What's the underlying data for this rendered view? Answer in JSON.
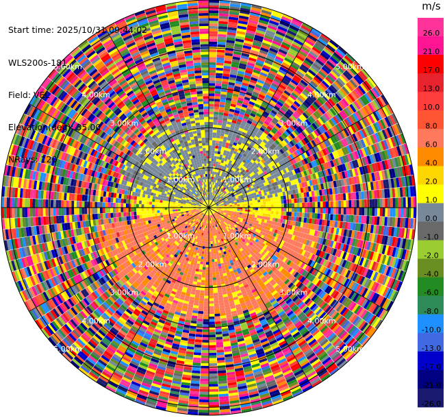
{
  "header": {
    "start_time": "Start time: 2025/10/31 09:44:02",
    "instrument": "WLS200s-181",
    "field": "Field: VEL",
    "elevation": "Elevation(deg): 35.00",
    "nrays": "NRays: 120"
  },
  "chart_data": {
    "type": "heatmap",
    "projection": "polar-ppi",
    "field": "VEL",
    "units": "m/s",
    "nrays": 120,
    "max_range_km": 5.2,
    "range_rings": [
      {
        "range_km": 1.0,
        "label": "1.00km"
      },
      {
        "range_km": 2.0,
        "label": "2.00km"
      },
      {
        "range_km": 3.0,
        "label": "3.00km"
      },
      {
        "range_km": 4.0,
        "label": "4.00km"
      },
      {
        "range_km": 5.0,
        "label": "5.00km"
      }
    ],
    "azimuth_lines_every_deg": 30,
    "near_field_pattern": [
      {
        "sector": "north",
        "range_km": [
          0,
          2.5
        ],
        "dominant_values": [
          -1.0,
          -2.0
        ]
      },
      {
        "sector": "south",
        "range_km": [
          0,
          3.0
        ],
        "dominant_values": [
          4.0,
          2.0
        ]
      },
      {
        "sector": "east-west",
        "range_km": [
          0,
          2.0
        ],
        "dominant_values": [
          0.0,
          1.0
        ]
      },
      {
        "sector": "all",
        "range_km": [
          2.5,
          5.2
        ],
        "dominant_values": "noise (full scale)"
      }
    ],
    "colorbar": {
      "label": "m/s",
      "vmin": -30.0,
      "vmax": 30.0,
      "ticks": [
        "26.0",
        "21.0",
        "17.0",
        "13.0",
        "10.0",
        "8.0",
        "6.0",
        "4.0",
        "2.0",
        "1.0",
        "0.0",
        "-1.0",
        "-2.0",
        "-4.0",
        "-6.0",
        "-8.0",
        "-10.0",
        "-13.0",
        "-17.0",
        "-21.0",
        "-26.0",
        "-30.0"
      ],
      "colors": [
        "#ff3399",
        "#ff1493",
        "#ff0000",
        "#e8232e",
        "#ff3d3d",
        "#ff5533",
        "#ff7a5c",
        "#ff8c00",
        "#ffd700",
        "#ffff00",
        "#778899",
        "#696969",
        "#9acd32",
        "#6b8e23",
        "#228b22",
        "#2e8b57",
        "#1e90ff",
        "#4169e1",
        "#0000cd",
        "#000080",
        "#191970"
      ]
    }
  }
}
